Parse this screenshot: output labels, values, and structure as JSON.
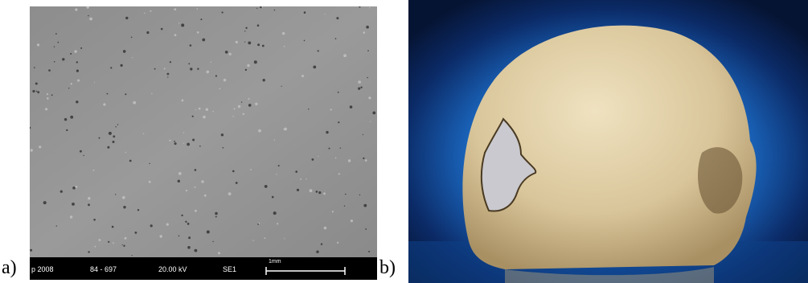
{
  "panels": [
    {
      "label": "a)",
      "info_bar": [
        "p 2008",
        "84 - 697",
        "20.00 kV",
        "SE1",
        "1mm"
      ]
    },
    {
      "label": "b)"
    }
  ]
}
